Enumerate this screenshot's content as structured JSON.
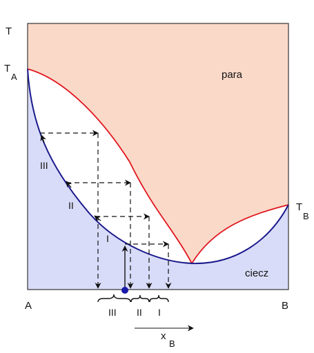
{
  "labels": {
    "y_axis": "T",
    "ta_main": "T",
    "ta_sub": "A",
    "tb_main": "T",
    "tb_sub": "B",
    "x_left": "A",
    "x_right": "B",
    "xb_main": "x",
    "xb_sub": "B",
    "vapor": "para",
    "liquid": "ciecz"
  },
  "stages": {
    "left_marks": [
      "III",
      "II",
      "I"
    ],
    "bottom_marks": [
      "III",
      "II",
      "I"
    ]
  },
  "colors": {
    "vapor_fill": "#fad9c8",
    "liquid_fill": "#d9dcf8",
    "vapor_curve": "#e0141c",
    "liquid_curve": "#1a1a8c",
    "start_point": "#1a1aa8"
  }
}
